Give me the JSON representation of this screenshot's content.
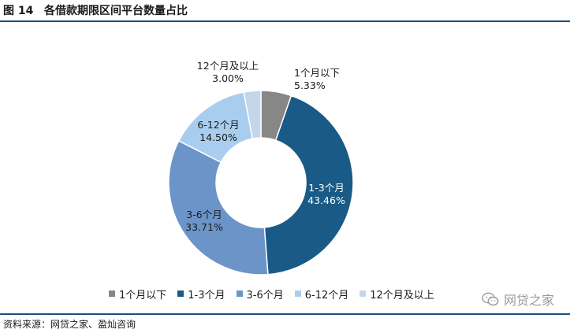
{
  "figure": {
    "number": "图 14",
    "title": "各借款期限区间平台数量占比",
    "source": "资料来源：网贷之家、盈灿咨询",
    "watermark": "网贷之家",
    "watermark_icon": "wechat-icon"
  },
  "chart_data": {
    "type": "pie",
    "donut": true,
    "title": "各借款期限区间平台数量占比",
    "legend_position": "bottom",
    "series": [
      {
        "name": "1个月以下",
        "value": 5.33,
        "label": "5.33%",
        "color": "#878787"
      },
      {
        "name": "1-3个月",
        "value": 43.46,
        "label": "43.46%",
        "color": "#1a5a86"
      },
      {
        "name": "3-6个月",
        "value": 33.71,
        "label": "33.71%",
        "color": "#6b95c9"
      },
      {
        "name": "6-12个月",
        "value": 14.5,
        "label": "14.50%",
        "color": "#a9cdee"
      },
      {
        "name": "12个月及以上",
        "value": 3.0,
        "label": "3.00%",
        "color": "#c4d7ea"
      }
    ]
  }
}
